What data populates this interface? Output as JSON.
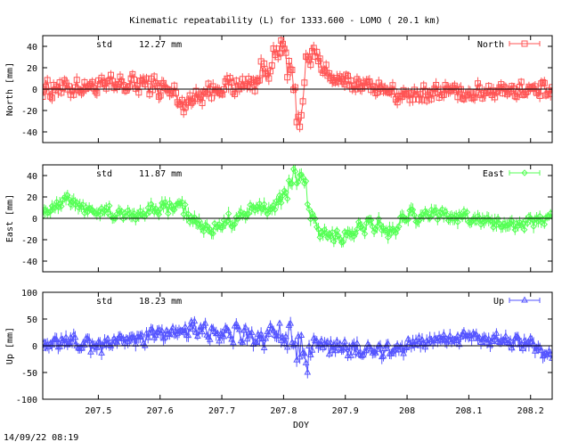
{
  "title": "Kinematic repeatability (L) for 1333.600 - LOMO  ( 20.1 km)",
  "timestamp": "14/09/22 08:19",
  "chart_data": [
    {
      "type": "line",
      "ylabel": "North [mm]",
      "ylim": [
        -50,
        50
      ],
      "yticks": [
        "40",
        "20",
        "0",
        "-20",
        "-40"
      ],
      "yticks_values": [
        40,
        20,
        0,
        -20,
        -40
      ],
      "std_label": "std",
      "std_value": "12.27 mm",
      "series": [
        {
          "name": "North",
          "color": "#ff5555",
          "marker": "square"
        }
      ],
      "waveform": [
        [
          207.41,
          0,
          12
        ],
        [
          207.5,
          3,
          12
        ],
        [
          207.58,
          5,
          12
        ],
        [
          207.62,
          -3,
          12
        ],
        [
          207.64,
          -15,
          14
        ],
        [
          207.66,
          -5,
          12
        ],
        [
          207.7,
          2,
          12
        ],
        [
          207.75,
          5,
          12
        ],
        [
          207.78,
          25,
          18
        ],
        [
          207.8,
          40,
          12
        ],
        [
          207.81,
          15,
          25
        ],
        [
          207.825,
          -30,
          20
        ],
        [
          207.835,
          10,
          28
        ],
        [
          207.845,
          35,
          12
        ],
        [
          207.86,
          25,
          12
        ],
        [
          207.88,
          8,
          10
        ],
        [
          207.92,
          5,
          10
        ],
        [
          207.95,
          2,
          8
        ],
        [
          208.0,
          -8,
          12
        ],
        [
          208.05,
          -2,
          10
        ],
        [
          208.1,
          -4,
          10
        ],
        [
          208.15,
          0,
          10
        ],
        [
          208.235,
          -2,
          10
        ]
      ],
      "xlim": [
        207.41,
        208.235
      ]
    },
    {
      "type": "line",
      "ylabel": "East [mm]",
      "ylim": [
        -50,
        50
      ],
      "yticks": [
        "40",
        "20",
        "0",
        "-20",
        "-40"
      ],
      "yticks_values": [
        40,
        20,
        0,
        -20,
        -40
      ],
      "std_label": "std",
      "std_value": "11.87 mm",
      "series": [
        {
          "name": "East",
          "color": "#55ff55",
          "marker": "diamond"
        }
      ],
      "waveform": [
        [
          207.41,
          5,
          8
        ],
        [
          207.43,
          12,
          8
        ],
        [
          207.45,
          20,
          6
        ],
        [
          207.48,
          8,
          8
        ],
        [
          207.52,
          5,
          8
        ],
        [
          207.56,
          3,
          8
        ],
        [
          207.6,
          10,
          8
        ],
        [
          207.63,
          12,
          10
        ],
        [
          207.66,
          -5,
          10
        ],
        [
          207.68,
          -12,
          10
        ],
        [
          207.7,
          -5,
          8
        ],
        [
          207.74,
          5,
          10
        ],
        [
          207.78,
          12,
          10
        ],
        [
          207.8,
          20,
          12
        ],
        [
          207.82,
          42,
          12
        ],
        [
          207.835,
          35,
          12
        ],
        [
          207.845,
          0,
          10
        ],
        [
          207.86,
          -18,
          12
        ],
        [
          207.9,
          -15,
          10
        ],
        [
          207.93,
          -8,
          10
        ],
        [
          207.95,
          -5,
          10
        ],
        [
          207.97,
          -15,
          10
        ],
        [
          208.0,
          0,
          10
        ],
        [
          208.05,
          5,
          8
        ],
        [
          208.1,
          0,
          8
        ],
        [
          208.15,
          -5,
          8
        ],
        [
          208.2,
          -4,
          8
        ],
        [
          208.235,
          0,
          8
        ]
      ],
      "xlim": [
        207.41,
        208.235
      ]
    },
    {
      "type": "line",
      "ylabel": "Up [mm]",
      "ylim": [
        -100,
        100
      ],
      "yticks": [
        "100",
        "50",
        "0",
        "-50",
        "-100"
      ],
      "yticks_values": [
        100,
        50,
        0,
        -50,
        -100
      ],
      "std_label": "std",
      "std_value": "18.23 mm",
      "series": [
        {
          "name": "Up",
          "color": "#5555ff",
          "marker": "triangle"
        }
      ],
      "waveform": [
        [
          207.41,
          0,
          15
        ],
        [
          207.45,
          10,
          15
        ],
        [
          207.5,
          0,
          18
        ],
        [
          207.55,
          10,
          18
        ],
        [
          207.6,
          20,
          18
        ],
        [
          207.65,
          35,
          18
        ],
        [
          207.7,
          25,
          25
        ],
        [
          207.75,
          15,
          25
        ],
        [
          207.8,
          20,
          30
        ],
        [
          207.825,
          0,
          45
        ],
        [
          207.835,
          -40,
          40
        ],
        [
          207.85,
          10,
          30
        ],
        [
          207.88,
          0,
          25
        ],
        [
          207.92,
          -10,
          22
        ],
        [
          207.96,
          -10,
          20
        ],
        [
          208.0,
          0,
          18
        ],
        [
          208.05,
          10,
          15
        ],
        [
          208.1,
          15,
          15
        ],
        [
          208.15,
          10,
          15
        ],
        [
          208.2,
          5,
          15
        ],
        [
          208.235,
          -20,
          15
        ]
      ],
      "xlim": [
        207.41,
        208.235
      ]
    }
  ],
  "xaxis": {
    "label": "DOY",
    "ticks": [
      "207.5",
      "207.6",
      "207.7",
      "207.8",
      "207.9",
      "208",
      "208.1",
      "208.2"
    ],
    "tick_values": [
      207.5,
      207.6,
      207.7,
      207.8,
      207.9,
      208.0,
      208.1,
      208.2
    ]
  }
}
